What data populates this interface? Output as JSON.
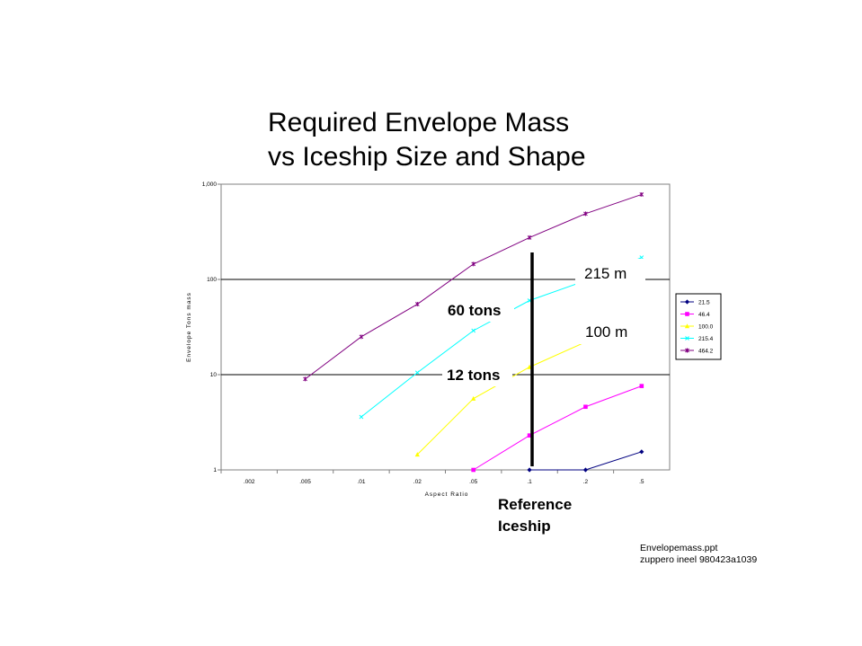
{
  "title": {
    "line1": "Required Envelope Mass",
    "line2": "vs Iceship Size and Shape"
  },
  "footer": {
    "line1": "Envelopemass.ppt",
    "line2": "zuppero  ineel 980423a1039"
  },
  "annotations": {
    "a215": "215 m",
    "a100": "100 m",
    "t60": "60 tons",
    "t12": "12 tons",
    "ref1": "Reference",
    "ref2": "Iceship"
  },
  "colors": {
    "s21": "#000080",
    "s45": "#ff00ff",
    "s100": "#ffff00",
    "s215": "#00ffff",
    "s464": "#800080"
  },
  "chart_data": {
    "type": "line",
    "xlabel": "Aspect Ratio",
    "ylabel": "Envelope Tons mass",
    "x_ticks": [
      ".002",
      ".005",
      ".01",
      ".02",
      ".05",
      ".1",
      ".2",
      ".5"
    ],
    "y_ticks": [
      {
        "value": 1,
        "label": "1"
      },
      {
        "value": 10,
        "label": "10"
      },
      {
        "value": 100,
        "label": "100"
      },
      {
        "value": 1000,
        "label": "1,000"
      }
    ],
    "y_scale": "log",
    "ylim": [
      1,
      1000
    ],
    "gridlines_y": [
      10,
      100
    ],
    "legend_position": "right",
    "series": [
      {
        "name": "21.5",
        "color": "#000080",
        "marker": "diamond",
        "points": [
          [
            ".1",
            1
          ],
          [
            ".2",
            1
          ],
          [
            ".5",
            1.55
          ]
        ]
      },
      {
        "name": "46.4",
        "color": "#ff00ff",
        "marker": "square",
        "points": [
          [
            ".05",
            1
          ],
          [
            ".1",
            2.3
          ],
          [
            ".2",
            4.6
          ],
          [
            ".5",
            7.6
          ]
        ]
      },
      {
        "name": "100.0",
        "color": "#ffff00",
        "marker": "triangle",
        "points": [
          [
            ".02",
            1.45
          ],
          [
            ".05",
            5.6
          ],
          [
            ".1",
            12
          ],
          [
            ".2",
            22
          ]
        ]
      },
      {
        "name": "215.4",
        "color": "#00ffff",
        "marker": "x",
        "points": [
          [
            ".01",
            3.6
          ],
          [
            ".02",
            10.5
          ],
          [
            ".05",
            29
          ],
          [
            ".1",
            60
          ],
          [
            ".2",
            97
          ],
          [
            ".5",
            170
          ]
        ]
      },
      {
        "name": "464.2",
        "color": "#800080",
        "marker": "star",
        "points": [
          [
            ".005",
            9
          ],
          [
            ".01",
            25
          ],
          [
            ".02",
            55
          ],
          [
            ".05",
            145
          ],
          [
            ".1",
            275
          ],
          [
            ".2",
            490
          ],
          [
            ".5",
            780
          ]
        ]
      }
    ],
    "reference_line_x": ".1"
  }
}
